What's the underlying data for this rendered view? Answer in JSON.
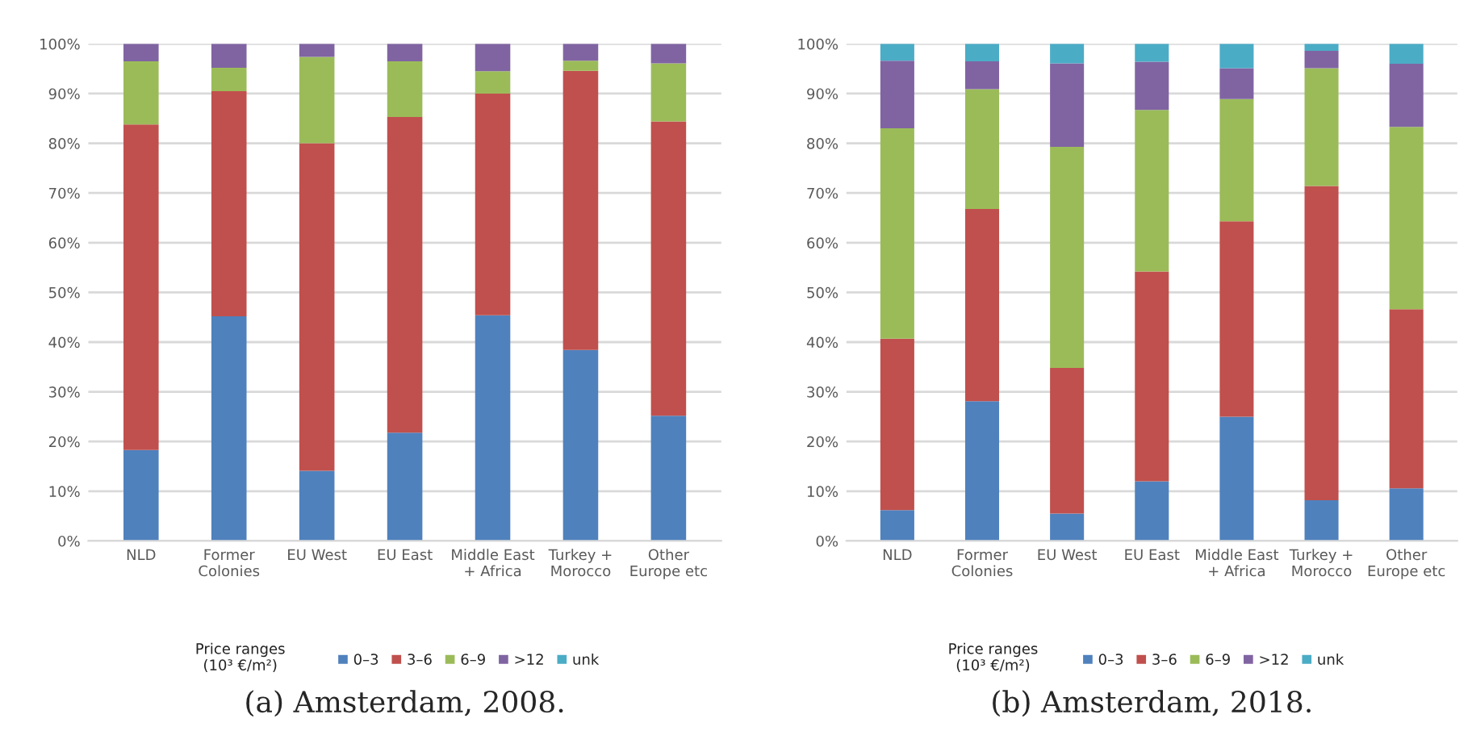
{
  "chart_data": [
    {
      "type": "bar",
      "title": "(a) Amsterdam, 2008.",
      "stacked": true,
      "legend": "bottom",
      "legend_title": "Price ranges\n(10³ €/m²)",
      "grid": "y",
      "categories": [
        "NLD",
        "Former\nColonies",
        "EU West",
        "EU East",
        "Middle East\n+ Africa",
        "Turkey +\nMorocco",
        "Other\nEurope etc"
      ],
      "ylim": [
        0,
        100
      ],
      "yticks": [
        {
          "value": 0,
          "label": "0%"
        },
        {
          "value": 10,
          "label": "10%"
        },
        {
          "value": 20,
          "label": "20%"
        },
        {
          "value": 30,
          "label": "30%"
        },
        {
          "value": 40,
          "label": "40%"
        },
        {
          "value": 50,
          "label": "50%"
        },
        {
          "value": 60,
          "label": "60%"
        },
        {
          "value": 70,
          "label": "70%"
        },
        {
          "value": 80,
          "label": "80%"
        },
        {
          "value": 90,
          "label": "90%"
        },
        {
          "value": 100,
          "label": "100%"
        }
      ],
      "series": [
        {
          "name": "0–3",
          "color": "#4f81bd",
          "values": [
            18.3,
            45.2,
            14.1,
            21.8,
            45.4,
            38.4,
            25.2
          ]
        },
        {
          "name": "3–6",
          "color": "#c0504d",
          "values": [
            65.5,
            45.3,
            65.9,
            63.5,
            44.6,
            56.2,
            59.2
          ]
        },
        {
          "name": "6–9",
          "color": "#9bbb59",
          "values": [
            12.7,
            4.7,
            17.4,
            11.2,
            4.5,
            2.0,
            11.7
          ]
        },
        {
          "name": ">12",
          "color": "#8064a2",
          "values": [
            3.5,
            4.8,
            2.6,
            3.5,
            5.5,
            3.4,
            3.9
          ]
        },
        {
          "name": "unk",
          "color": "#4bacc6",
          "values": [
            0,
            0,
            0,
            0,
            0,
            0,
            0
          ]
        }
      ]
    },
    {
      "type": "bar",
      "title": "(b) Amsterdam, 2018.",
      "stacked": true,
      "legend": "bottom",
      "legend_title": "Price ranges\n(10³ €/m²)",
      "grid": "y",
      "categories": [
        "NLD",
        "Former\nColonies",
        "EU West",
        "EU East",
        "Middle East\n+ Africa",
        "Turkey +\nMorocco",
        "Other\nEurope etc"
      ],
      "ylim": [
        0,
        100
      ],
      "yticks": [
        {
          "value": 0,
          "label": "0%"
        },
        {
          "value": 10,
          "label": "10%"
        },
        {
          "value": 20,
          "label": "20%"
        },
        {
          "value": 30,
          "label": "30%"
        },
        {
          "value": 40,
          "label": "40%"
        },
        {
          "value": 50,
          "label": "50%"
        },
        {
          "value": 60,
          "label": "60%"
        },
        {
          "value": 70,
          "label": "70%"
        },
        {
          "value": 80,
          "label": "80%"
        },
        {
          "value": 90,
          "label": "90%"
        },
        {
          "value": 100,
          "label": "100%"
        }
      ],
      "series": [
        {
          "name": "0–3",
          "color": "#4f81bd",
          "values": [
            6.2,
            28.1,
            5.5,
            12.0,
            25.0,
            8.2,
            10.6
          ]
        },
        {
          "name": "3–6",
          "color": "#c0504d",
          "values": [
            34.5,
            38.7,
            29.3,
            42.2,
            39.3,
            63.2,
            36.0
          ]
        },
        {
          "name": "6–9",
          "color": "#9bbb59",
          "values": [
            42.3,
            24.1,
            44.5,
            32.5,
            24.6,
            23.7,
            36.7
          ]
        },
        {
          "name": ">12",
          "color": "#8064a2",
          "values": [
            13.6,
            5.6,
            16.8,
            9.7,
            6.2,
            3.5,
            12.7
          ]
        },
        {
          "name": "unk",
          "color": "#4bacc6",
          "values": [
            3.4,
            3.5,
            3.9,
            3.6,
            4.9,
            1.4,
            4.0
          ]
        }
      ]
    }
  ]
}
